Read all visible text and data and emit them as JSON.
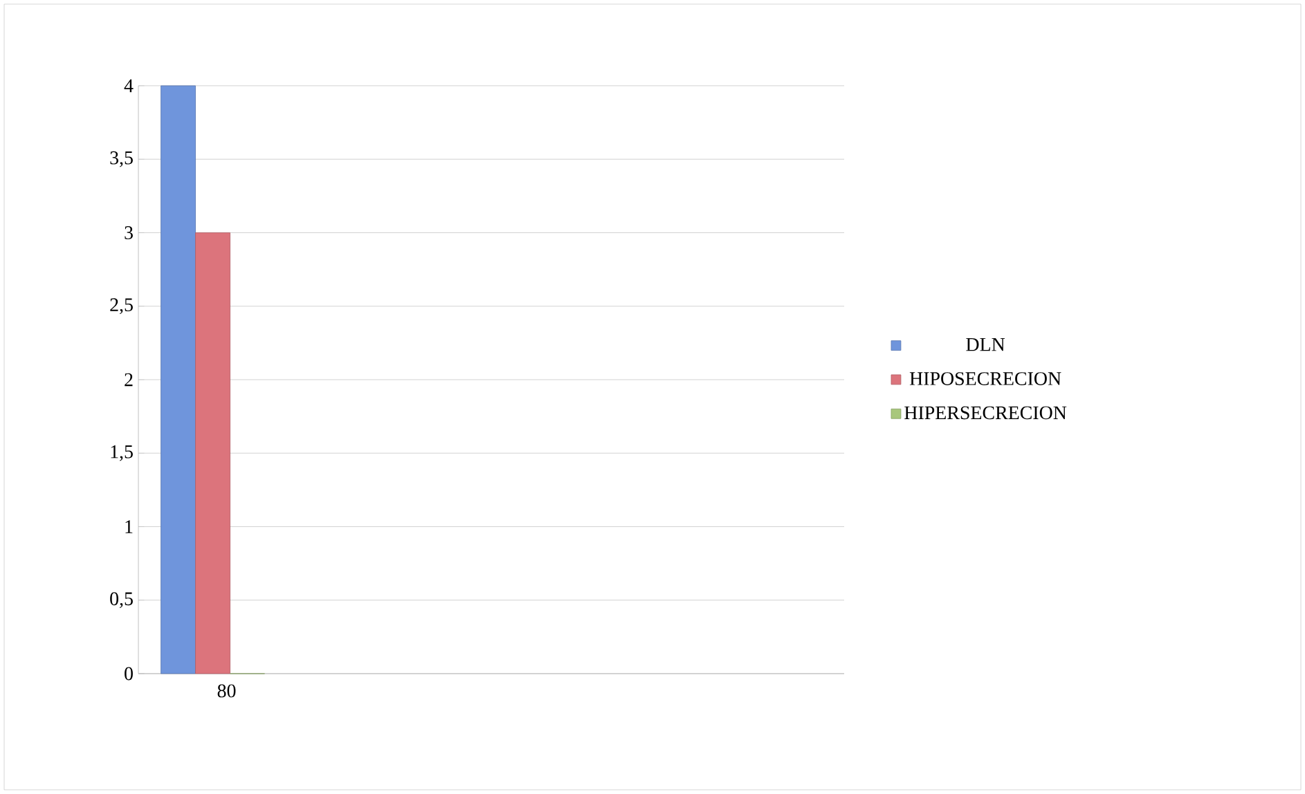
{
  "chart_data": {
    "type": "bar",
    "categories": [
      "80",
      null,
      null,
      null
    ],
    "series": [
      {
        "name": "DLN",
        "color": "#6f95dc",
        "values": [
          4,
          null,
          null,
          null
        ]
      },
      {
        "name": "HIPOSECRECION",
        "color": "#dc747c",
        "values": [
          3,
          null,
          null,
          null
        ]
      },
      {
        "name": "HIPERSECRECION",
        "color": "#a8c77c",
        "values": [
          0,
          null,
          null,
          null
        ]
      }
    ],
    "ylim": [
      0,
      4
    ],
    "yticks": [
      0,
      {
        "value": 0.5,
        "label": "0,5"
      },
      1,
      {
        "value": 1.5,
        "label": "1,5"
      },
      2,
      {
        "value": 2.5,
        "label": "2,5"
      },
      3,
      {
        "value": 3.5,
        "label": "3,5"
      },
      4
    ],
    "grid": "y",
    "legend": "right"
  }
}
